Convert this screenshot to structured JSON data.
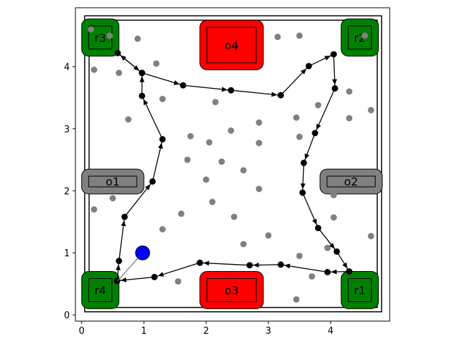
{
  "chart_data": {
    "type": "scatter",
    "title": "",
    "xlabel": "",
    "ylabel": "",
    "xlim": [
      -0.1,
      4.95
    ],
    "ylim": [
      -0.1,
      4.95
    ],
    "x_ticks": [
      "0",
      "1",
      "2",
      "3",
      "4"
    ],
    "y_ticks": [
      "0",
      "1",
      "2",
      "3",
      "4"
    ],
    "grid": false,
    "arena": {
      "outer_border": [
        0.05,
        0.05,
        4.82,
        4.82
      ],
      "inner_border": [
        0.12,
        0.12,
        4.75,
        4.75
      ]
    },
    "robot_zones": [
      {
        "label": "r1",
        "x": 4.17,
        "y": 0.1,
        "w": 0.6,
        "h": 0.6,
        "color": "#008000"
      },
      {
        "label": "r2",
        "x": 4.17,
        "y": 4.17,
        "w": 0.6,
        "h": 0.6,
        "color": "#008000"
      },
      {
        "label": "r3",
        "x": 0.0,
        "y": 4.17,
        "w": 0.6,
        "h": 0.6,
        "color": "#008000"
      },
      {
        "label": "r4",
        "x": 0.0,
        "y": 0.1,
        "w": 0.6,
        "h": 0.6,
        "color": "#008000"
      }
    ],
    "obstacles": [
      {
        "label": "o1",
        "x": 0.0,
        "y": 1.95,
        "w": 1.0,
        "h": 0.4,
        "color": "#808080"
      },
      {
        "label": "o2",
        "x": 3.83,
        "y": 1.95,
        "w": 1.0,
        "h": 0.4,
        "color": "#808080"
      },
      {
        "label": "o3",
        "x": 1.9,
        "y": 0.1,
        "w": 1.02,
        "h": 0.6,
        "color": "#ff0000"
      },
      {
        "label": "o4",
        "x": 1.9,
        "y": 3.95,
        "w": 1.02,
        "h": 0.8,
        "color": "#ff0000"
      }
    ],
    "agent": {
      "x": 0.98,
      "y": 1.0,
      "color": "#0000ff"
    },
    "agent_link_to": {
      "x": 0.58,
      "y": 0.55
    },
    "path_color": "#000000",
    "path": [
      {
        "x": 0.57,
        "y": 0.55
      },
      {
        "x": 0.6,
        "y": 0.87
      },
      {
        "x": 0.69,
        "y": 1.58
      },
      {
        "x": 1.14,
        "y": 2.15
      },
      {
        "x": 1.3,
        "y": 2.83
      },
      {
        "x": 0.97,
        "y": 3.53
      },
      {
        "x": 0.97,
        "y": 3.9
      },
      {
        "x": 0.58,
        "y": 4.22
      },
      {
        "x": 0.97,
        "y": 3.9
      },
      {
        "x": 1.63,
        "y": 3.7
      },
      {
        "x": 2.4,
        "y": 3.62
      },
      {
        "x": 3.2,
        "y": 3.54
      },
      {
        "x": 3.65,
        "y": 4.01
      },
      {
        "x": 4.05,
        "y": 4.2
      },
      {
        "x": 4.07,
        "y": 3.65
      },
      {
        "x": 3.75,
        "y": 2.93
      },
      {
        "x": 3.57,
        "y": 2.45
      },
      {
        "x": 3.55,
        "y": 1.97
      },
      {
        "x": 3.8,
        "y": 1.4
      },
      {
        "x": 4.1,
        "y": 1.02
      },
      {
        "x": 4.3,
        "y": 0.7
      },
      {
        "x": 3.95,
        "y": 0.69
      },
      {
        "x": 3.2,
        "y": 0.81
      },
      {
        "x": 2.7,
        "y": 0.8
      },
      {
        "x": 1.9,
        "y": 0.84
      },
      {
        "x": 1.17,
        "y": 0.61
      },
      {
        "x": 0.57,
        "y": 0.55
      }
    ],
    "scatter_points": {
      "color": "#808080",
      "x": [
        0.15,
        0.45,
        0.9,
        0.2,
        0.6,
        1.2,
        0.75,
        1.3,
        2.15,
        3.15,
        3.5,
        4.55,
        4.3,
        3.8,
        4.65,
        4.3,
        3.45,
        3.5,
        2.85,
        2.4,
        1.75,
        2.05,
        2.85,
        1.7,
        2.25,
        2.6,
        2.0,
        2.1,
        2.85,
        0.5,
        0.2,
        1.6,
        2.45,
        1.3,
        2.6,
        3.0,
        3.5,
        4.05,
        4.05,
        3.95,
        3.7,
        4.65,
        3.45,
        1.55
      ],
      "y": [
        4.6,
        4.5,
        4.45,
        3.95,
        3.9,
        4.05,
        3.15,
        3.48,
        3.43,
        4.48,
        4.5,
        4.5,
        3.6,
        3.38,
        3.3,
        3.17,
        3.18,
        2.87,
        3.1,
        2.97,
        2.88,
        2.78,
        2.77,
        2.5,
        2.47,
        2.33,
        2.18,
        1.82,
        2.03,
        1.88,
        1.7,
        1.63,
        1.58,
        1.38,
        1.14,
        1.28,
        0.95,
        1.93,
        1.57,
        1.08,
        0.62,
        1.27,
        0.25,
        0.54
      ]
    }
  }
}
